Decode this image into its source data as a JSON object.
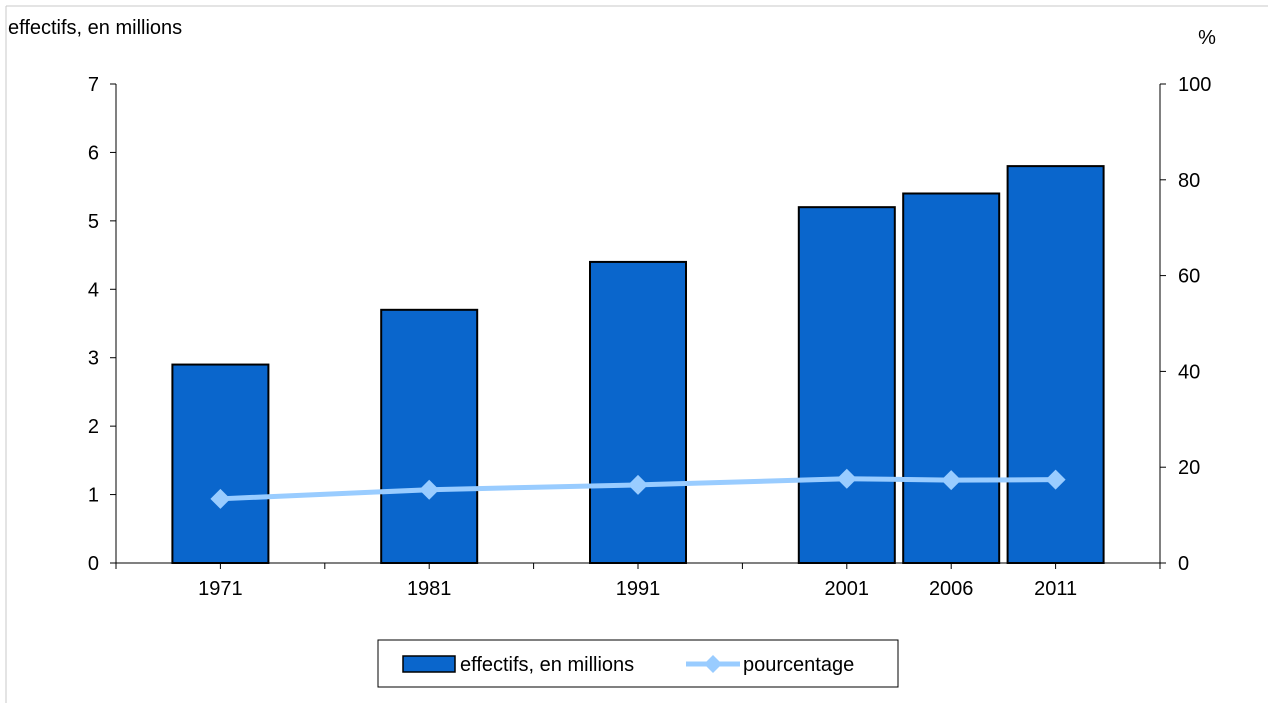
{
  "chart_data": {
    "type": "bar",
    "categories": [
      "1971",
      "1981",
      "1991",
      "2001",
      "2006",
      "2011"
    ],
    "x_years": [
      1971,
      1981,
      1991,
      2001,
      2006,
      2011
    ],
    "series": [
      {
        "name": "effectifs, en millions",
        "type": "bar",
        "axis": "left",
        "values": [
          2.9,
          3.7,
          4.4,
          5.2,
          5.4,
          5.8
        ],
        "color": "#0a66cc"
      },
      {
        "name": "pourcentage",
        "type": "line",
        "axis": "right",
        "values": [
          13.4,
          15.3,
          16.3,
          17.6,
          17.3,
          17.4
        ],
        "color": "#99ccff"
      }
    ],
    "left_axis": {
      "label": "effectifs, en millions",
      "ylim": [
        0,
        7
      ],
      "ticks": [
        0,
        1,
        2,
        3,
        4,
        5,
        6,
        7
      ]
    },
    "right_axis": {
      "label": "%",
      "ylim": [
        0,
        100
      ],
      "ticks": [
        0,
        20,
        40,
        60,
        80,
        100
      ]
    },
    "grid": false,
    "legend": {
      "placement": "bottom-center",
      "entries": [
        "effectifs, en millions",
        "pourcentage"
      ]
    }
  }
}
